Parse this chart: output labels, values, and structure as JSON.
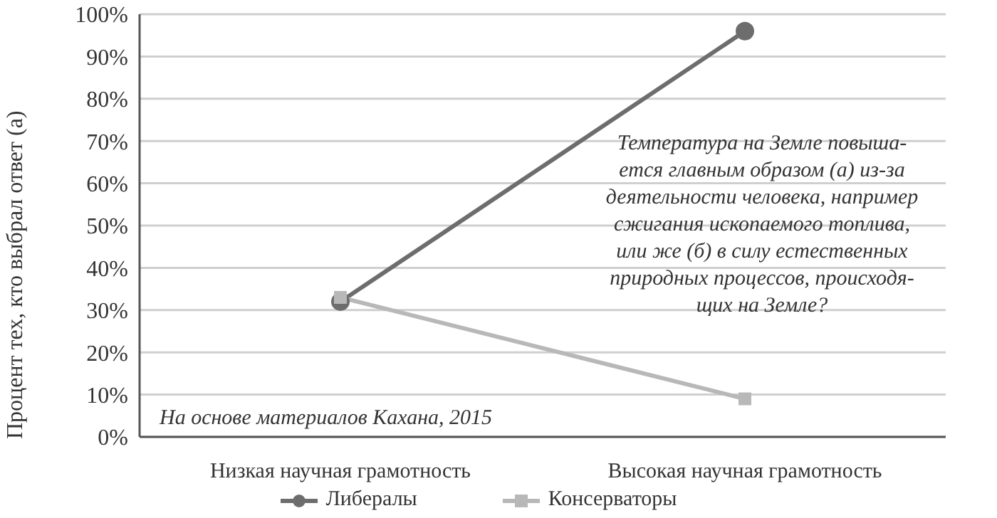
{
  "chart_data": {
    "type": "line",
    "ylabel": "Процент тех, кто выбрал ответ (а)",
    "categories": [
      "Низкая научная грамотность",
      "Высокая научная грамотность"
    ],
    "series": [
      {
        "name": "Либералы",
        "color": "#6d6d6d",
        "values": [
          32,
          96
        ],
        "marker": "circle"
      },
      {
        "name": "Консерваторы",
        "color": "#b8b8b8",
        "values": [
          33,
          9
        ],
        "marker": "square"
      }
    ],
    "ylim": [
      0,
      100
    ],
    "yticks": [
      {
        "value": 0,
        "label": "0%"
      },
      {
        "value": 10,
        "label": "10%"
      },
      {
        "value": 20,
        "label": "20%"
      },
      {
        "value": 30,
        "label": "30%"
      },
      {
        "value": 40,
        "label": "40%"
      },
      {
        "value": 50,
        "label": "50%"
      },
      {
        "value": 60,
        "label": "60%"
      },
      {
        "value": 70,
        "label": "70%"
      },
      {
        "value": 80,
        "label": "80%"
      },
      {
        "value": 90,
        "label": "90%"
      },
      {
        "value": 100,
        "label": "100%"
      }
    ],
    "grid": "y",
    "legend": "bottom",
    "annotations": [
      "Температура на Земле повыша-\nется главным образом (а) из-за\nдеятельности человека, например\nсжигания ископаемого топлива,\nили же (б) в силу естественных\nприродных процессов, происходя-\nщих на Земле?",
      "На основе материалов Кахана, 2015"
    ]
  }
}
